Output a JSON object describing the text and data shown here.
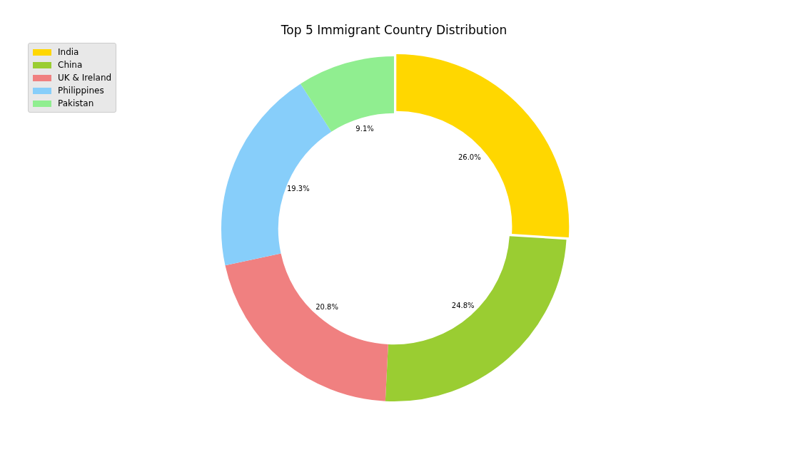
{
  "chart_data": {
    "type": "donut",
    "title": "Top 5 Immigrant Country Distribution",
    "categories": [
      "India",
      "China",
      "UK & Ireland",
      "Philippines",
      "Pakistan"
    ],
    "values": [
      26.0,
      24.8,
      20.8,
      19.3,
      9.1
    ],
    "colors": [
      "#ffd700",
      "#9acd32",
      "#f08080",
      "#87cefa",
      "#90ee90"
    ],
    "value_labels": [
      "26.0%",
      "24.8%",
      "20.8%",
      "19.3%",
      "9.1%"
    ],
    "legend": "top left"
  }
}
